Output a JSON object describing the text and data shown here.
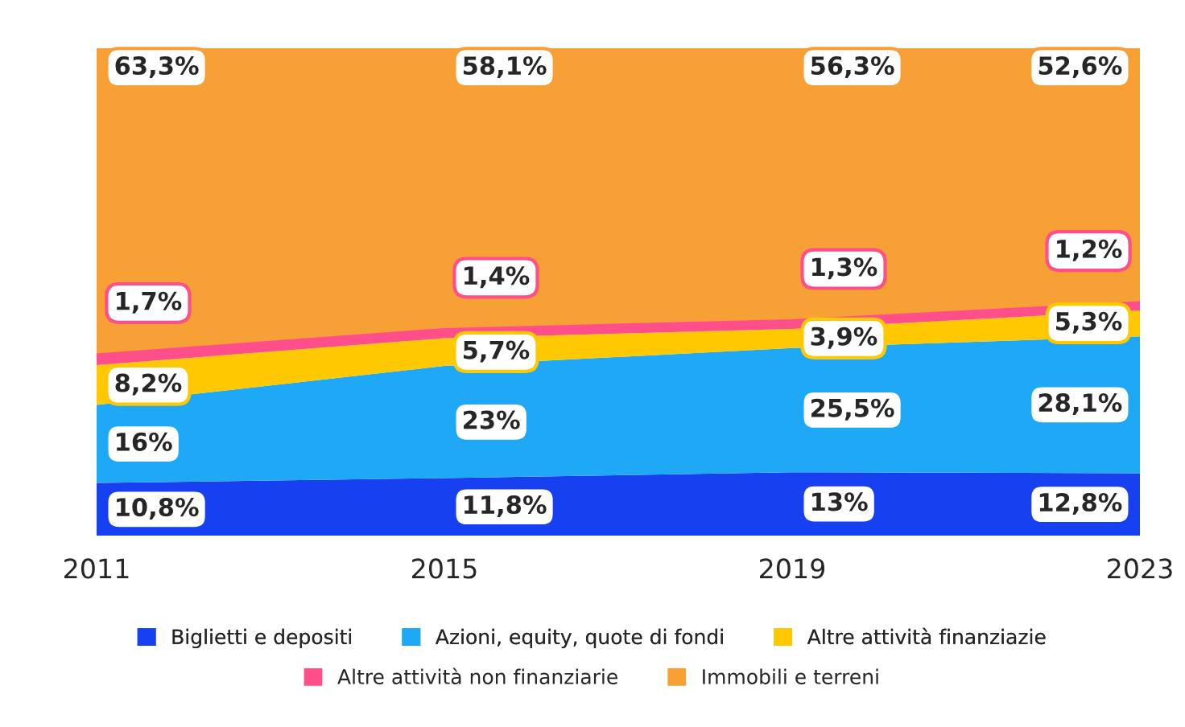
{
  "chart_data": {
    "type": "area",
    "stacked": true,
    "categories": [
      "2011",
      "2015",
      "2019",
      "2023"
    ],
    "ylim": [
      0,
      100
    ],
    "tick_labels": "x",
    "legend": "bottom",
    "grid": false,
    "series": [
      {
        "name": "Biglietti e depositi",
        "color": "#1740f0",
        "values": [
          10.8,
          11.8,
          13,
          12.8
        ],
        "value_labels": [
          "10,8%",
          "11,8%",
          "13%",
          "12,8%"
        ]
      },
      {
        "name": "Azioni, equity, quote di fondi",
        "color": "#1ea8f6",
        "values": [
          16,
          23,
          25.5,
          28.1
        ],
        "value_labels": [
          "16%",
          "23%",
          "25,5%",
          "28,1%"
        ]
      },
      {
        "name": "Altre attività finanziazie",
        "color": "#ffc800",
        "values": [
          8.2,
          5.7,
          3.9,
          5.3
        ],
        "value_labels": [
          "8,2%",
          "5,7%",
          "3,9%",
          "5,3%"
        ]
      },
      {
        "name": "Altre attività non finanziarie",
        "color": "#ff4f8b",
        "values": [
          1.7,
          1.4,
          1.3,
          1.2
        ],
        "value_labels": [
          "1,7%",
          "1,4%",
          "1,3%",
          "1,2%"
        ]
      },
      {
        "name": "Immobili e terreni",
        "color": "#f7a035",
        "values": [
          63.3,
          58.1,
          56.3,
          52.6
        ],
        "value_labels": [
          "63,3%",
          "58,1%",
          "56,3%",
          "52,6%"
        ]
      }
    ]
  }
}
